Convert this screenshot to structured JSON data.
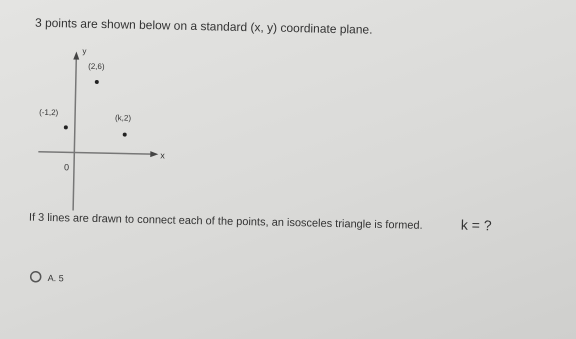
{
  "question": {
    "intro": "3 points are shown below on a standard (x, y) coordinate plane.",
    "text": "If 3 lines are drawn to connect each of the points, an isosceles triangle is formed.",
    "prompt": "k = ?"
  },
  "figure": {
    "y_axis": "y",
    "x_axis": "x",
    "origin": "0",
    "points": [
      "(2,6)",
      "(-1,2)",
      "(k,2)"
    ]
  },
  "options": [
    "A. 5"
  ]
}
